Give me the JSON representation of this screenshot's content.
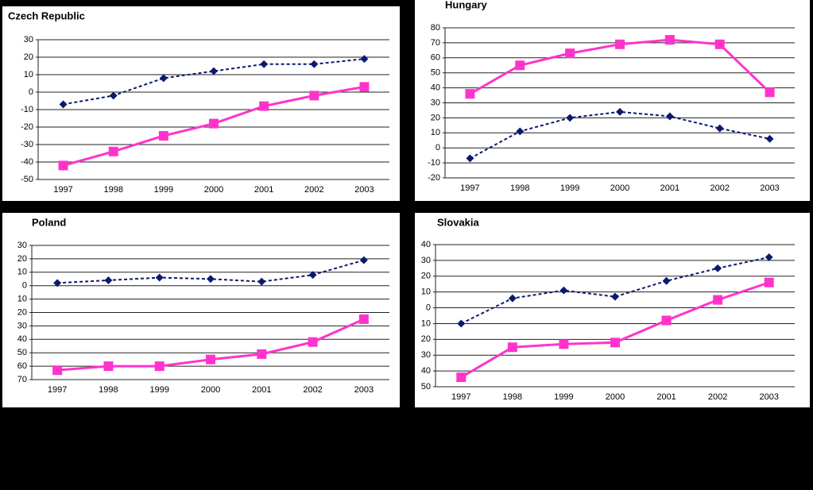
{
  "chart_data": [
    {
      "type": "line",
      "title": "Czech Republic",
      "categories": [
        "1997",
        "1998",
        "1999",
        "2000",
        "2001",
        "2002",
        "2003"
      ],
      "series": [
        {
          "color": "#0a1a6e",
          "values": [
            -7,
            -2,
            8,
            12,
            16,
            16,
            19
          ]
        },
        {
          "color": "#ff33cc",
          "values": [
            -42,
            -34,
            -25,
            -18,
            -8,
            -2,
            3
          ]
        }
      ],
      "ylim": [
        -50,
        30
      ],
      "yticks": [
        -50,
        -40,
        -30,
        -20,
        -10,
        0,
        10,
        20,
        30
      ],
      "grid": true
    },
    {
      "type": "line",
      "title": "Hungary",
      "categories": [
        "1997",
        "1998",
        "1999",
        "2000",
        "2001",
        "2002",
        "2003"
      ],
      "series": [
        {
          "color": "#0a1a6e",
          "values": [
            -7,
            11,
            20,
            24,
            21,
            13,
            6
          ]
        },
        {
          "color": "#ff33cc",
          "values": [
            36,
            55,
            63,
            69,
            72,
            69,
            37
          ]
        }
      ],
      "ylim": [
        -20,
        80
      ],
      "yticks": [
        -20,
        -10,
        0,
        10,
        20,
        30,
        40,
        50,
        60,
        70,
        80
      ],
      "grid": true
    },
    {
      "type": "line",
      "title": "Poland",
      "categories": [
        "1997",
        "1998",
        "1999",
        "2000",
        "2001",
        "2002",
        "2003"
      ],
      "series": [
        {
          "color": "#0a1a6e",
          "values": [
            2,
            4,
            6,
            5,
            3,
            8,
            19
          ]
        },
        {
          "color": "#ff33cc",
          "values": [
            -63,
            -60,
            -60,
            -55,
            -51,
            -42,
            -25
          ]
        }
      ],
      "ylim": [
        -70,
        30
      ],
      "yticks": [
        {
          "value": -70,
          "label": "70"
        },
        {
          "value": -60,
          "label": "60"
        },
        {
          "value": -50,
          "label": "50"
        },
        {
          "value": -40,
          "label": "40"
        },
        {
          "value": -30,
          "label": "30"
        },
        {
          "value": -20,
          "label": "20"
        },
        {
          "value": -10,
          "label": "10"
        },
        0,
        10,
        20,
        30
      ],
      "grid": true
    },
    {
      "type": "line",
      "title": "Slovakia",
      "categories": [
        "1997",
        "1998",
        "1999",
        "2000",
        "2001",
        "2002",
        "2003"
      ],
      "series": [
        {
          "color": "#0a1a6e",
          "values": [
            -10,
            6,
            11,
            7,
            17,
            25,
            32
          ]
        },
        {
          "color": "#ff33cc",
          "values": [
            -44,
            -25,
            -23,
            -22,
            -8,
            5,
            16
          ]
        }
      ],
      "ylim": [
        -50,
        40
      ],
      "yticks": [
        {
          "value": -50,
          "label": "50"
        },
        {
          "value": -40,
          "label": "40"
        },
        {
          "value": -30,
          "label": "30"
        },
        {
          "value": -20,
          "label": "20"
        },
        {
          "value": -10,
          "label": "10"
        },
        0,
        10,
        20,
        30,
        40
      ],
      "grid": true
    }
  ]
}
